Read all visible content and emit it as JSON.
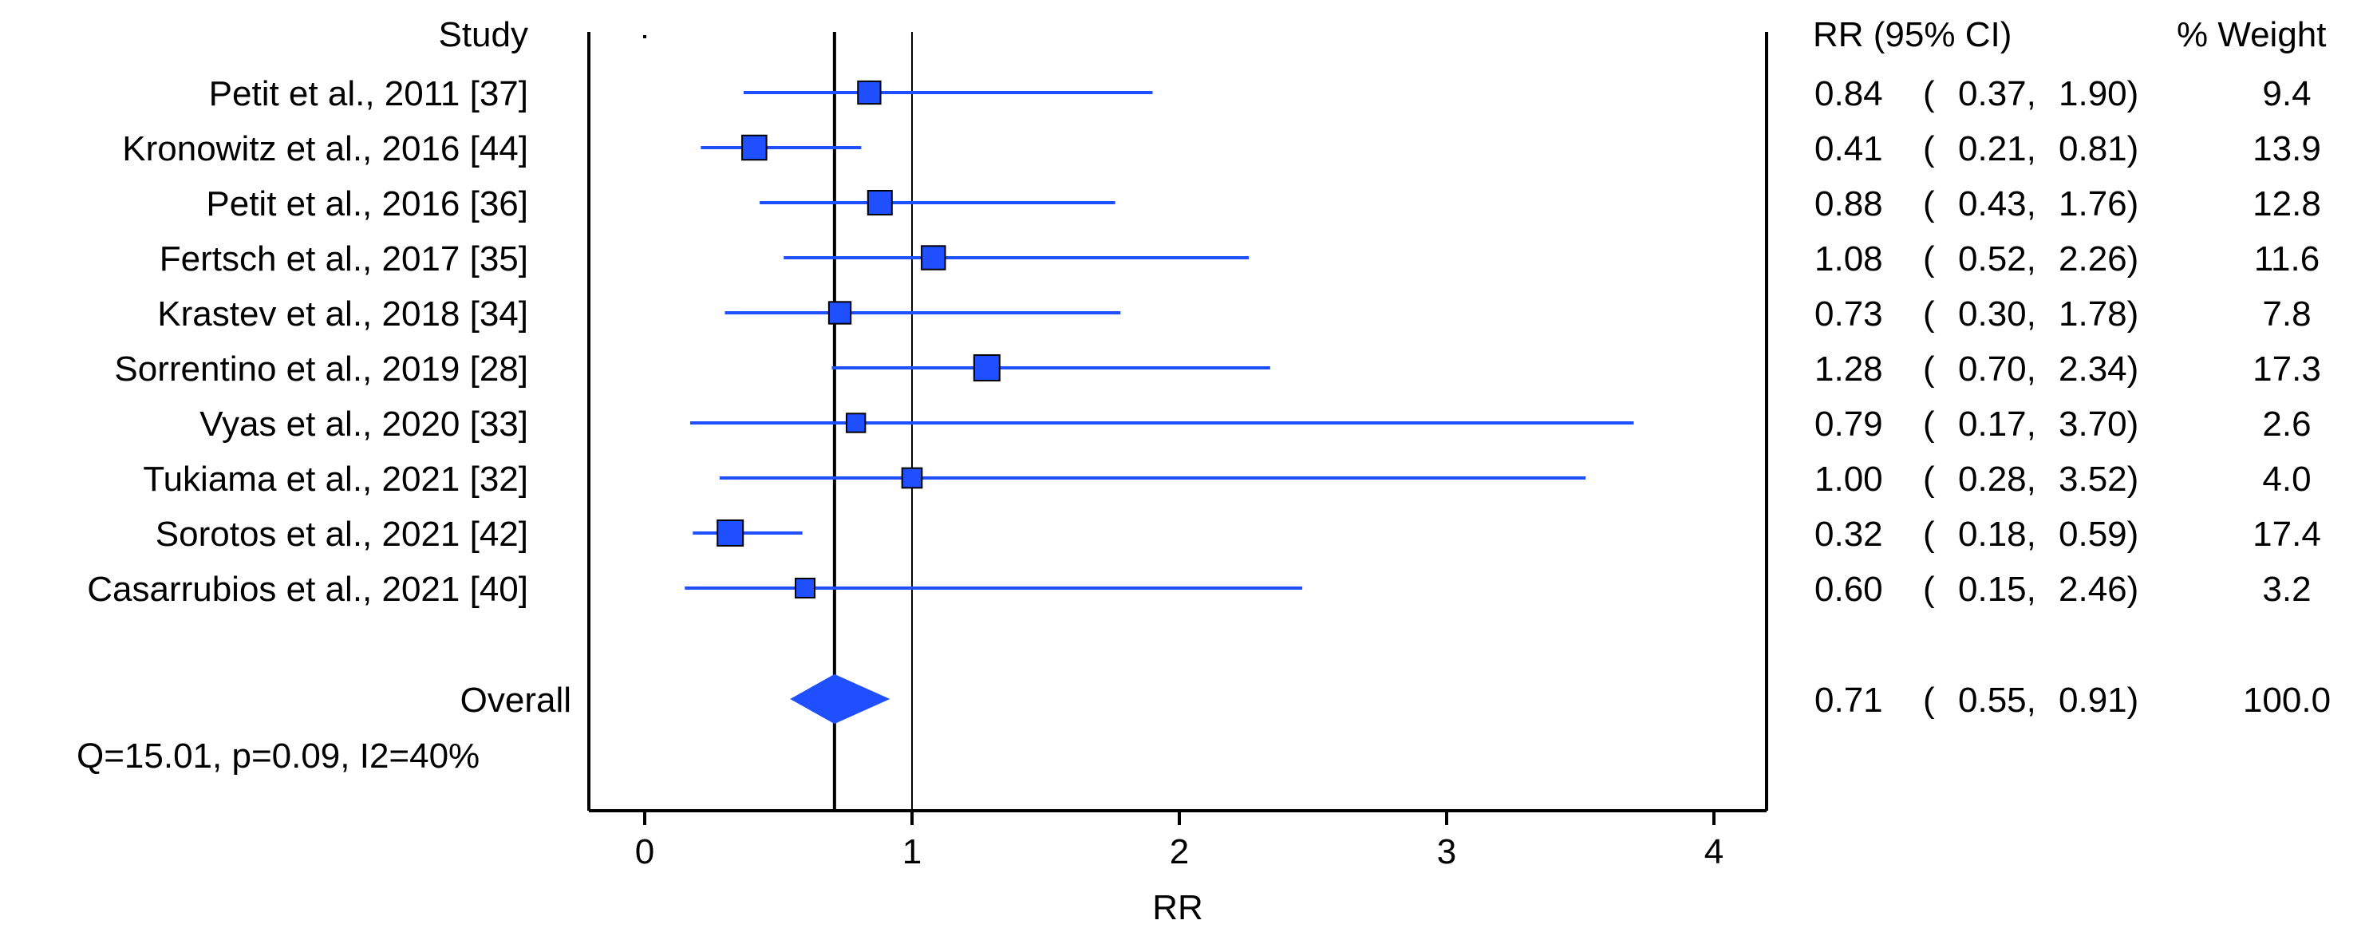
{
  "header": {
    "study": "Study",
    "rr_ci": "RR (95% CI)",
    "weight": "% Weight"
  },
  "colors": {
    "marker": "#1f4fff",
    "marker_stroke": "#000000",
    "axis": "#000000"
  },
  "chart_data": {
    "type": "forest",
    "xlabel": "RR",
    "xlim": [
      0,
      4
    ],
    "xticks": [
      0,
      1,
      2,
      3,
      4
    ],
    "null_line": 1,
    "overall_line": 0.71,
    "studies": [
      {
        "name": "Petit et al., 2011 [37]",
        "rr": 0.84,
        "lo": 0.37,
        "hi": 1.9,
        "rr_text": "0.84",
        "lo_text": "0.37,",
        "hi_text": "1.90)",
        "weight": "9.4"
      },
      {
        "name": "Kronowitz et al., 2016 [44]",
        "rr": 0.41,
        "lo": 0.21,
        "hi": 0.81,
        "rr_text": "0.41",
        "lo_text": "0.21,",
        "hi_text": "0.81)",
        "weight": "13.9"
      },
      {
        "name": "Petit et al., 2016 [36]",
        "rr": 0.88,
        "lo": 0.43,
        "hi": 1.76,
        "rr_text": "0.88",
        "lo_text": "0.43,",
        "hi_text": "1.76)",
        "weight": "12.8"
      },
      {
        "name": "Fertsch et al., 2017 [35]",
        "rr": 1.08,
        "lo": 0.52,
        "hi": 2.26,
        "rr_text": "1.08",
        "lo_text": "0.52,",
        "hi_text": "2.26)",
        "weight": "11.6"
      },
      {
        "name": "Krastev et al., 2018 [34]",
        "rr": 0.73,
        "lo": 0.3,
        "hi": 1.78,
        "rr_text": "0.73",
        "lo_text": "0.30,",
        "hi_text": "1.78)",
        "weight": "7.8"
      },
      {
        "name": "Sorrentino et al., 2019 [28]",
        "rr": 1.28,
        "lo": 0.7,
        "hi": 2.34,
        "rr_text": "1.28",
        "lo_text": "0.70,",
        "hi_text": "2.34)",
        "weight": "17.3"
      },
      {
        "name": "Vyas et al., 2020 [33]",
        "rr": 0.79,
        "lo": 0.17,
        "hi": 3.7,
        "rr_text": "0.79",
        "lo_text": "0.17,",
        "hi_text": "3.70)",
        "weight": "2.6"
      },
      {
        "name": "Tukiama et al., 2021 [32]",
        "rr": 1.0,
        "lo": 0.28,
        "hi": 3.52,
        "rr_text": "1.00",
        "lo_text": "0.28,",
        "hi_text": "3.52)",
        "weight": "4.0"
      },
      {
        "name": "Sorotos et al., 2021 [42]",
        "rr": 0.32,
        "lo": 0.18,
        "hi": 0.59,
        "rr_text": "0.32",
        "lo_text": "0.18,",
        "hi_text": "0.59)",
        "weight": "17.4"
      },
      {
        "name": "Casarrubios et al., 2021 [40]",
        "rr": 0.6,
        "lo": 0.15,
        "hi": 2.46,
        "rr_text": "0.60",
        "lo_text": "0.15,",
        "hi_text": "2.46)",
        "weight": "3.2"
      }
    ],
    "overall": {
      "name": "Overall",
      "rr": 0.71,
      "lo": 0.55,
      "hi": 0.91,
      "rr_text": "0.71",
      "lo_text": "0.55,",
      "hi_text": "0.91)",
      "weight": "100.0",
      "heterogeneity": "Q=15.01, p=0.09, I2=40%"
    }
  }
}
